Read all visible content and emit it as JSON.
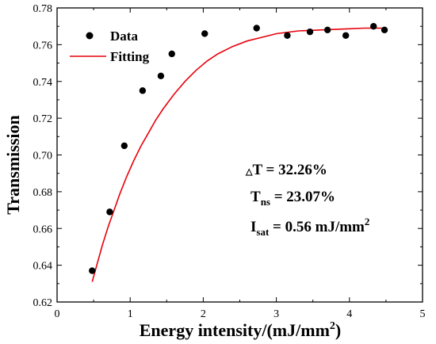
{
  "chart_data": {
    "type": "scatter",
    "xlabel_main": "Energy intensity/(mJ/mm",
    "xlabel_sup": "2",
    "xlabel_end": ")",
    "ylabel": "Transmission",
    "xlim": [
      0,
      5
    ],
    "ylim": [
      0.62,
      0.78
    ],
    "x_ticks": [
      "0",
      "1",
      "2",
      "3",
      "4",
      "5"
    ],
    "y_ticks": [
      "0.62",
      "0.64",
      "0.66",
      "0.68",
      "0.70",
      "0.72",
      "0.74",
      "0.76",
      "0.78"
    ],
    "grid": false,
    "legend_position": "top-left",
    "series": [
      {
        "name": "Data",
        "kind": "scatter",
        "color": "#000000",
        "x": [
          0.48,
          0.72,
          0.92,
          1.17,
          1.42,
          1.57,
          2.02,
          2.73,
          3.15,
          3.46,
          3.7,
          3.95,
          4.33,
          4.48
        ],
        "y": [
          0.637,
          0.669,
          0.705,
          0.735,
          0.743,
          0.755,
          0.766,
          0.769,
          0.765,
          0.767,
          0.768,
          0.765,
          0.77,
          0.768
        ]
      },
      {
        "name": "Fitting",
        "kind": "line",
        "color": "#e8000b",
        "x": [
          0.48,
          0.55,
          0.62,
          0.7,
          0.78,
          0.86,
          0.95,
          1.05,
          1.15,
          1.25,
          1.35,
          1.45,
          1.6,
          1.75,
          1.9,
          2.05,
          2.2,
          2.4,
          2.6,
          2.8,
          3.0,
          3.3,
          3.6,
          3.9,
          4.2,
          4.5
        ],
        "y": [
          0.631,
          0.641,
          0.651,
          0.661,
          0.67,
          0.679,
          0.688,
          0.697,
          0.705,
          0.712,
          0.719,
          0.725,
          0.733,
          0.74,
          0.746,
          0.751,
          0.755,
          0.759,
          0.762,
          0.764,
          0.766,
          0.7675,
          0.768,
          0.7685,
          0.769,
          0.769
        ]
      }
    ],
    "annotations": {
      "delta_symbol": "△",
      "delta_text": "T = 32.26%",
      "tns_main": "T",
      "tns_sub": "ns",
      "tns_value": " = 23.07%",
      "isat_main": "I",
      "isat_sub": "sat",
      "isat_value": " = 0.56 mJ/mm",
      "isat_sup": "2"
    }
  }
}
